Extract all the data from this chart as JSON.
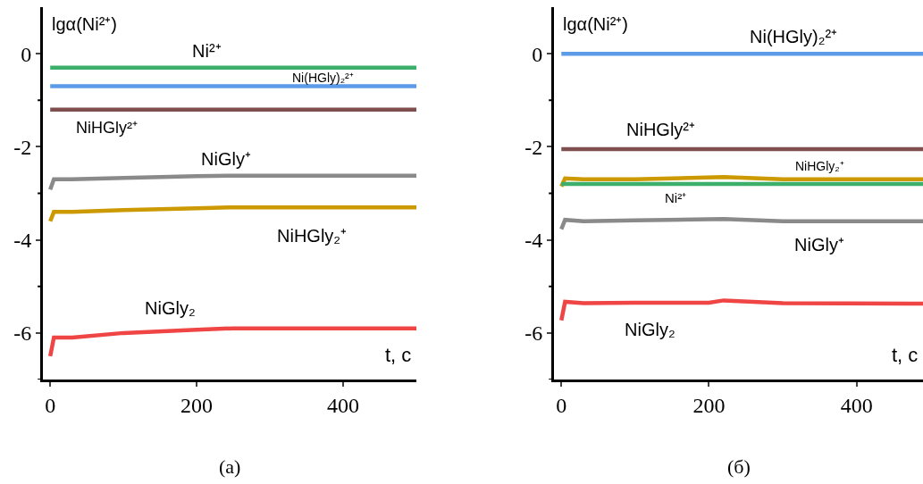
{
  "chart_data": [
    {
      "type": "line",
      "ylabel": "lgα(Ni²⁺)",
      "xlabel": "t, с",
      "xlim": [
        -10,
        500
      ],
      "ylim": [
        -7,
        1
      ],
      "xticks": [
        0,
        200,
        400
      ],
      "yticks": [
        {
          "value": -7,
          "label": null
        },
        -6,
        {
          "value": -5,
          "label": null
        },
        -4,
        {
          "value": -3,
          "label": null
        },
        -2,
        {
          "value": -1,
          "label": null
        },
        0
      ],
      "grid": false,
      "marker": "none",
      "line_style": "solid",
      "series": [
        {
          "name": "Ni²⁺",
          "color": "#3cb06a",
          "x": [
            0,
            500
          ],
          "values": [
            -0.3,
            -0.3
          ]
        },
        {
          "name": "Ni(HGly)₂²⁺",
          "color": "#5b9be8",
          "x": [
            0,
            500
          ],
          "values": [
            -0.7,
            -0.7
          ]
        },
        {
          "name": "NiHGly²⁺",
          "color": "#7f4f4f",
          "x": [
            0,
            500
          ],
          "values": [
            -1.2,
            -1.2
          ]
        },
        {
          "name": "NiGly⁺",
          "color": "#8a8a8a",
          "x": [
            0,
            5,
            30,
            100,
            200,
            250,
            500
          ],
          "values": [
            -2.92,
            -2.7,
            -2.7,
            -2.67,
            -2.63,
            -2.62,
            -2.62
          ]
        },
        {
          "name": "NiHGly₂⁺",
          "color": "#cc9900",
          "x": [
            0,
            5,
            30,
            100,
            200,
            250,
            500
          ],
          "values": [
            -3.6,
            -3.4,
            -3.4,
            -3.36,
            -3.32,
            -3.3,
            -3.3
          ]
        },
        {
          "name": "NiGly₂",
          "color": "#f04545",
          "x": [
            0,
            5,
            30,
            100,
            200,
            250,
            500
          ],
          "values": [
            -6.5,
            -6.1,
            -6.1,
            -6.0,
            -5.93,
            -5.9,
            -5.9
          ]
        }
      ],
      "annotations": [
        "(а)"
      ]
    },
    {
      "type": "line",
      "ylabel": "lgα(Ni²⁺)",
      "xlabel": "t, с",
      "xlim": [
        -10,
        490
      ],
      "ylim": [
        -7,
        1
      ],
      "xticks": [
        0,
        200,
        400
      ],
      "yticks": [
        {
          "value": -7,
          "label": null
        },
        -6,
        {
          "value": -5,
          "label": null
        },
        -4,
        {
          "value": -3,
          "label": null
        },
        -2,
        {
          "value": -1,
          "label": null
        },
        0
      ],
      "grid": false,
      "marker": "none",
      "line_style": "solid",
      "series": [
        {
          "name": "Ni(HGly)₂²⁺",
          "color": "#5b9be8",
          "x": [
            0,
            490
          ],
          "values": [
            0,
            0
          ]
        },
        {
          "name": "NiHGly²⁺",
          "color": "#7f4f4f",
          "x": [
            0,
            490
          ],
          "values": [
            -2.05,
            -2.05
          ]
        },
        {
          "name": "NiHGly₂⁺",
          "color": "#cc9900",
          "x": [
            0,
            5,
            30,
            100,
            220,
            300,
            490
          ],
          "values": [
            -2.85,
            -2.68,
            -2.7,
            -2.7,
            -2.65,
            -2.7,
            -2.7
          ]
        },
        {
          "name": "Ni²⁺",
          "color": "#3cb06a",
          "x": [
            0,
            490
          ],
          "values": [
            -2.8,
            -2.8
          ]
        },
        {
          "name": "NiGly⁺",
          "color": "#8a8a8a",
          "x": [
            0,
            5,
            30,
            100,
            220,
            300,
            490
          ],
          "values": [
            -3.77,
            -3.57,
            -3.6,
            -3.58,
            -3.55,
            -3.6,
            -3.6
          ]
        },
        {
          "name": "NiGly₂",
          "color": "#f04545",
          "x": [
            0,
            5,
            30,
            100,
            200,
            220,
            300,
            490
          ],
          "values": [
            -5.73,
            -5.33,
            -5.36,
            -5.35,
            -5.35,
            -5.3,
            -5.36,
            -5.37
          ]
        }
      ],
      "annotations": [
        "(б)"
      ]
    }
  ]
}
